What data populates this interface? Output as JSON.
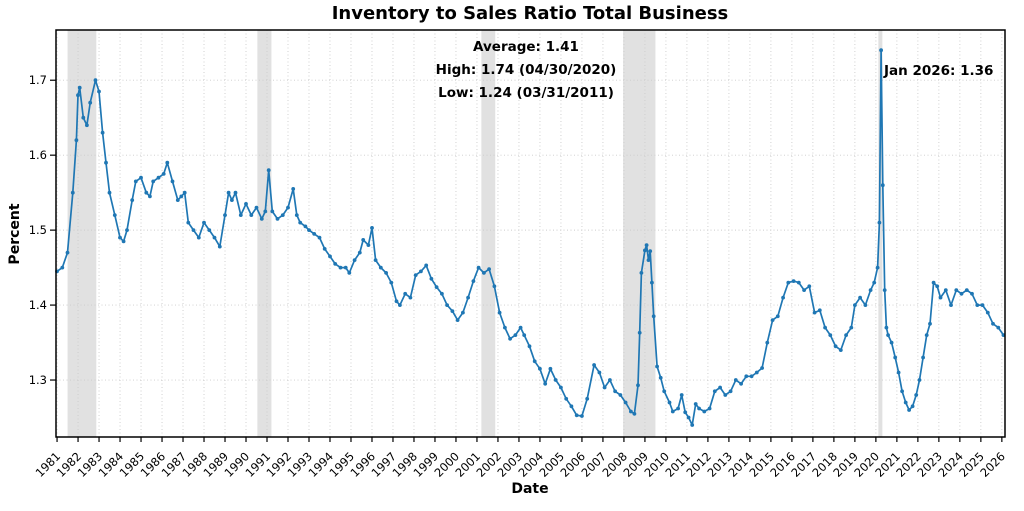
{
  "title": "Inventory to Sales Ratio Total Business",
  "annotations": {
    "stats_line1": "Average: 1.41",
    "stats_line2": "High: 1.74 (04/30/2020)",
    "stats_line3": "Low: 1.24 (03/31/2011)",
    "latest_label": "Jan 2026: 1.36"
  },
  "chart_data": {
    "type": "line",
    "title": "Inventory to Sales Ratio Total Business",
    "xlabel": "Date",
    "ylabel": "Percent",
    "legend": "none",
    "grid": true,
    "grid_color": "#cccccc",
    "line_color": "#1f77b4",
    "band_color": "#bdbdbd",
    "xlim": [
      1980.95,
      2026.15
    ],
    "ylim": [
      1.224,
      1.767
    ],
    "x_ticks": [
      1981,
      1982,
      1983,
      1984,
      1985,
      1986,
      1987,
      1988,
      1989,
      1990,
      1991,
      1992,
      1993,
      1994,
      1995,
      1996,
      1997,
      1998,
      1999,
      2000,
      2001,
      2002,
      2003,
      2004,
      2005,
      2006,
      2007,
      2008,
      2009,
      2010,
      2011,
      2012,
      2013,
      2014,
      2015,
      2016,
      2017,
      2018,
      2019,
      2020,
      2021,
      2022,
      2023,
      2024,
      2025,
      2026
    ],
    "y_ticks": [
      1.3,
      1.4,
      1.5,
      1.6,
      1.7
    ],
    "stats": {
      "average": 1.41,
      "high": 1.74,
      "high_date": "04/30/2020",
      "low": 1.24,
      "low_date": "03/31/2011",
      "latest": 1.36,
      "latest_date": "Jan 2026"
    },
    "recession_bands": [
      [
        1981.5,
        1982.87
      ],
      [
        1990.54,
        1991.21
      ],
      [
        2001.21,
        2001.87
      ],
      [
        2007.96,
        2009.5
      ],
      [
        2020.12,
        2020.31
      ]
    ],
    "series": [
      {
        "name": "Inventory to Sales Ratio Total Business",
        "x": [
          1981.0,
          1981.25,
          1981.5,
          1981.75,
          1981.92,
          1982.0,
          1982.08,
          1982.25,
          1982.42,
          1982.58,
          1982.83,
          1983.0,
          1983.17,
          1983.33,
          1983.5,
          1983.75,
          1984.0,
          1984.17,
          1984.33,
          1984.58,
          1984.75,
          1985.0,
          1985.25,
          1985.42,
          1985.58,
          1985.83,
          1986.08,
          1986.25,
          1986.5,
          1986.75,
          1986.92,
          1987.08,
          1987.25,
          1987.5,
          1987.75,
          1988.0,
          1988.25,
          1988.5,
          1988.75,
          1989.0,
          1989.17,
          1989.33,
          1989.5,
          1989.75,
          1990.0,
          1990.25,
          1990.5,
          1990.75,
          1990.92,
          1991.08,
          1991.25,
          1991.5,
          1991.75,
          1992.0,
          1992.25,
          1992.42,
          1992.58,
          1992.83,
          1993.0,
          1993.25,
          1993.5,
          1993.75,
          1994.0,
          1994.25,
          1994.5,
          1994.75,
          1994.92,
          1995.17,
          1995.42,
          1995.58,
          1995.83,
          1996.0,
          1996.17,
          1996.42,
          1996.67,
          1996.92,
          1997.17,
          1997.33,
          1997.58,
          1997.83,
          1998.08,
          1998.33,
          1998.58,
          1998.83,
          1999.08,
          1999.33,
          1999.58,
          1999.83,
          2000.08,
          2000.33,
          2000.58,
          2000.83,
          2001.08,
          2001.33,
          2001.58,
          2001.83,
          2002.08,
          2002.33,
          2002.58,
          2002.83,
          2003.08,
          2003.25,
          2003.5,
          2003.75,
          2004.0,
          2004.25,
          2004.5,
          2004.75,
          2005.0,
          2005.25,
          2005.5,
          2005.75,
          2006.0,
          2006.25,
          2006.58,
          2006.83,
          2007.08,
          2007.33,
          2007.58,
          2007.83,
          2008.08,
          2008.33,
          2008.5,
          2008.67,
          2008.75,
          2008.83,
          2009.0,
          2009.08,
          2009.17,
          2009.25,
          2009.33,
          2009.42,
          2009.58,
          2009.75,
          2009.92,
          2010.17,
          2010.33,
          2010.58,
          2010.75,
          2010.92,
          2011.08,
          2011.25,
          2011.42,
          2011.58,
          2011.83,
          2012.08,
          2012.33,
          2012.58,
          2012.83,
          2013.08,
          2013.33,
          2013.58,
          2013.83,
          2014.08,
          2014.33,
          2014.58,
          2014.83,
          2015.08,
          2015.33,
          2015.58,
          2015.83,
          2016.08,
          2016.33,
          2016.58,
          2016.83,
          2017.08,
          2017.33,
          2017.58,
          2017.83,
          2018.08,
          2018.33,
          2018.58,
          2018.83,
          2019.0,
          2019.25,
          2019.5,
          2019.75,
          2019.92,
          2020.08,
          2020.17,
          2020.25,
          2020.33,
          2020.42,
          2020.5,
          2020.58,
          2020.75,
          2020.92,
          2021.08,
          2021.25,
          2021.42,
          2021.58,
          2021.75,
          2021.92,
          2022.08,
          2022.25,
          2022.42,
          2022.58,
          2022.75,
          2022.92,
          2023.08,
          2023.33,
          2023.58,
          2023.83,
          2024.08,
          2024.33,
          2024.58,
          2024.83,
          2025.08,
          2025.33,
          2025.58,
          2025.83,
          2026.08
        ],
        "y": [
          1.445,
          1.45,
          1.47,
          1.55,
          1.62,
          1.68,
          1.69,
          1.65,
          1.64,
          1.67,
          1.7,
          1.685,
          1.63,
          1.59,
          1.55,
          1.52,
          1.49,
          1.485,
          1.5,
          1.54,
          1.565,
          1.57,
          1.55,
          1.545,
          1.565,
          1.57,
          1.575,
          1.59,
          1.565,
          1.54,
          1.545,
          1.55,
          1.51,
          1.5,
          1.49,
          1.51,
          1.5,
          1.49,
          1.478,
          1.52,
          1.55,
          1.54,
          1.55,
          1.52,
          1.535,
          1.52,
          1.53,
          1.515,
          1.525,
          1.58,
          1.525,
          1.515,
          1.52,
          1.53,
          1.555,
          1.52,
          1.51,
          1.505,
          1.5,
          1.495,
          1.49,
          1.475,
          1.465,
          1.455,
          1.45,
          1.45,
          1.443,
          1.46,
          1.47,
          1.487,
          1.48,
          1.503,
          1.46,
          1.45,
          1.443,
          1.43,
          1.405,
          1.4,
          1.415,
          1.41,
          1.44,
          1.445,
          1.453,
          1.435,
          1.424,
          1.415,
          1.4,
          1.392,
          1.38,
          1.39,
          1.41,
          1.432,
          1.45,
          1.443,
          1.448,
          1.425,
          1.39,
          1.37,
          1.355,
          1.36,
          1.37,
          1.36,
          1.345,
          1.325,
          1.315,
          1.295,
          1.315,
          1.3,
          1.29,
          1.275,
          1.265,
          1.253,
          1.252,
          1.275,
          1.32,
          1.31,
          1.29,
          1.3,
          1.285,
          1.28,
          1.27,
          1.258,
          1.255,
          1.293,
          1.363,
          1.443,
          1.473,
          1.48,
          1.46,
          1.472,
          1.43,
          1.385,
          1.318,
          1.303,
          1.285,
          1.27,
          1.258,
          1.262,
          1.28,
          1.257,
          1.25,
          1.24,
          1.268,
          1.262,
          1.258,
          1.262,
          1.285,
          1.29,
          1.28,
          1.285,
          1.3,
          1.295,
          1.305,
          1.305,
          1.31,
          1.316,
          1.35,
          1.38,
          1.385,
          1.41,
          1.43,
          1.432,
          1.43,
          1.42,
          1.425,
          1.39,
          1.393,
          1.37,
          1.36,
          1.345,
          1.34,
          1.36,
          1.37,
          1.4,
          1.41,
          1.4,
          1.42,
          1.43,
          1.45,
          1.51,
          1.74,
          1.56,
          1.42,
          1.37,
          1.36,
          1.35,
          1.33,
          1.31,
          1.285,
          1.27,
          1.26,
          1.265,
          1.28,
          1.3,
          1.33,
          1.36,
          1.375,
          1.43,
          1.425,
          1.41,
          1.42,
          1.4,
          1.42,
          1.415,
          1.42,
          1.415,
          1.4,
          1.4,
          1.39,
          1.375,
          1.37,
          1.36
        ]
      }
    ]
  }
}
